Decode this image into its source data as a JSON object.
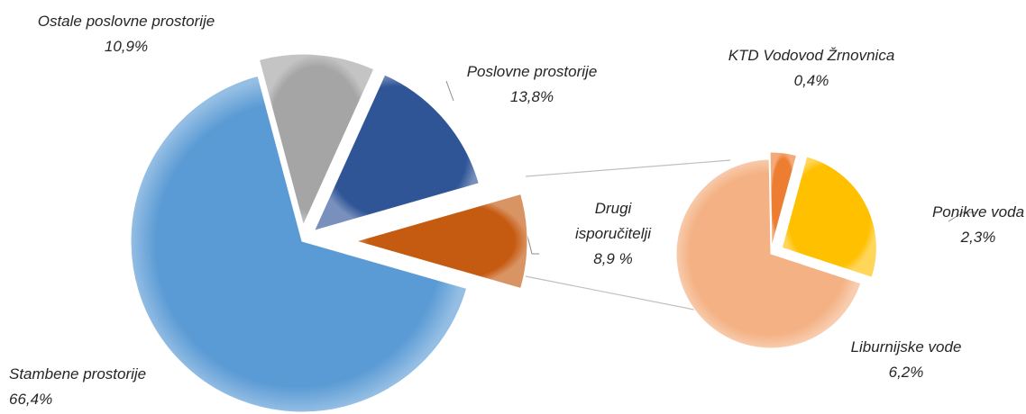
{
  "chart_data": {
    "type": "pie",
    "categories": [
      "Drugi isporučitelji",
      "Stambene prostorije",
      "Ostale poslovne prostorije",
      "Poslovne prostorije"
    ],
    "values": [
      8.9,
      66.4,
      10.9,
      13.8
    ],
    "value_labels": [
      "8,9 %",
      "66,4%",
      "10,9%",
      "13,8%"
    ],
    "colors": [
      "#c55a11",
      "#5b9bd5",
      "#a5a5a5",
      "#2f5597"
    ],
    "secondary": {
      "categories": [
        "KTD Vodovod Žrnovnica",
        "Ponikve voda",
        "Liburnijske vode"
      ],
      "values": [
        0.4,
        2.3,
        6.2
      ],
      "value_labels": [
        "0,4%",
        "2,3%",
        "6,2%"
      ],
      "colors": [
        "#ed7d31",
        "#ffc000",
        "#f4b183"
      ]
    }
  }
}
